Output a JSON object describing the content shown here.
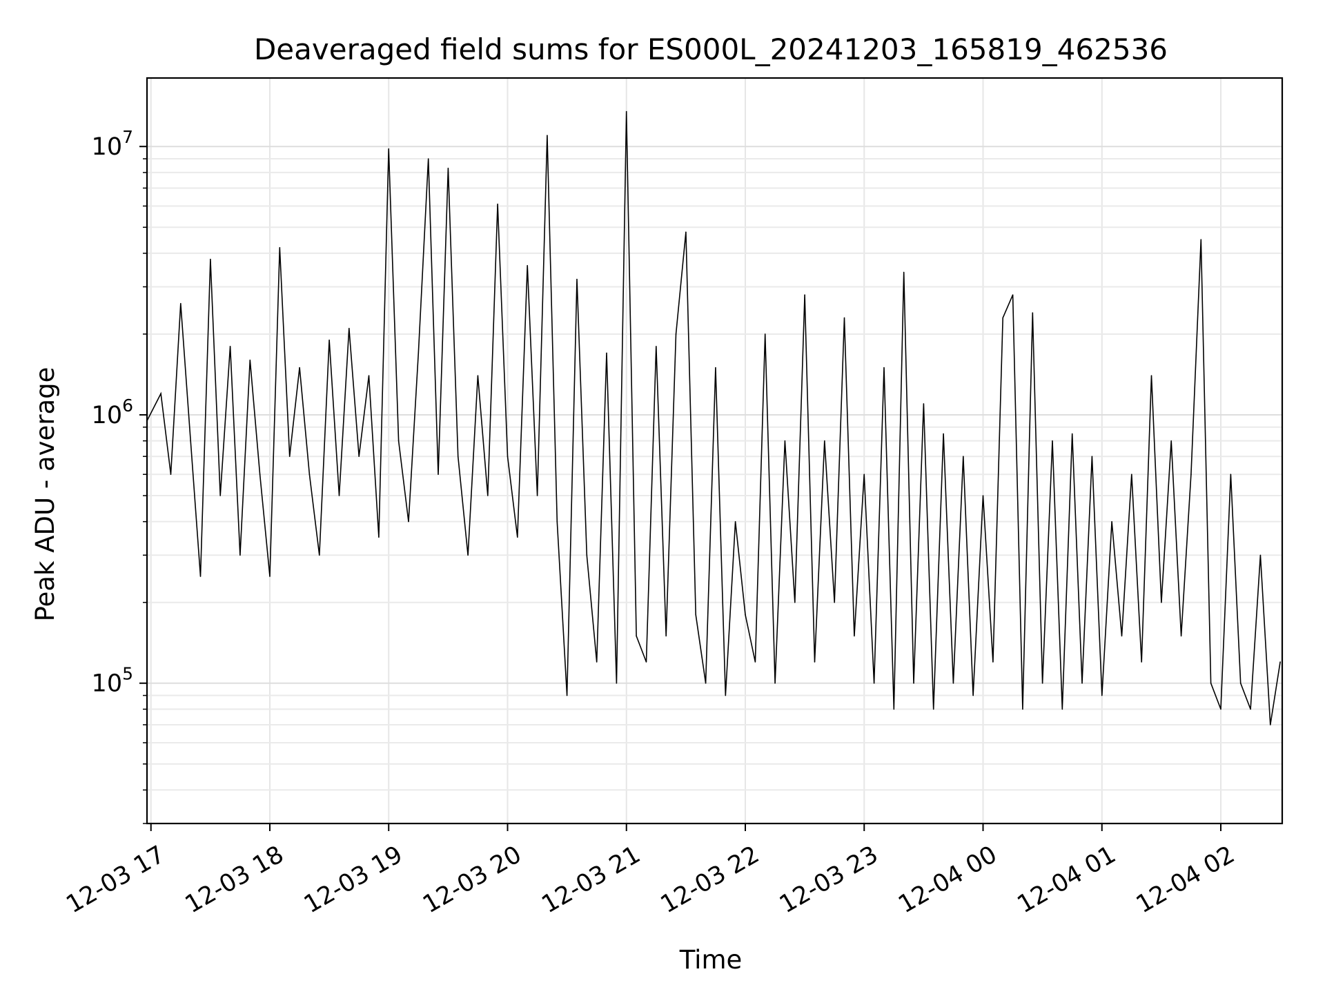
{
  "chart_data": {
    "type": "line",
    "title": "Deaveraged field sums for ES000L_20241203_165819_462536",
    "xlabel": "Time",
    "ylabel": "Peak ADU - average",
    "yscale": "log",
    "ylim": [
      30000,
      18000000
    ],
    "xlim": [
      "2024-12-03 16:58",
      "2024-12-04 02:31"
    ],
    "grid": true,
    "x_ticks": [
      {
        "label": "12-03 17",
        "t": "2024-12-03 17:00"
      },
      {
        "label": "12-03 18",
        "t": "2024-12-03 18:00"
      },
      {
        "label": "12-03 19",
        "t": "2024-12-03 19:00"
      },
      {
        "label": "12-03 20",
        "t": "2024-12-03 20:00"
      },
      {
        "label": "12-03 21",
        "t": "2024-12-03 21:00"
      },
      {
        "label": "12-03 22",
        "t": "2024-12-03 22:00"
      },
      {
        "label": "12-03 23",
        "t": "2024-12-03 23:00"
      },
      {
        "label": "12-04 00",
        "t": "2024-12-04 00:00"
      },
      {
        "label": "12-04 01",
        "t": "2024-12-04 01:00"
      },
      {
        "label": "12-04 02",
        "t": "2024-12-04 02:00"
      }
    ],
    "y_ticks": [
      {
        "base": "10",
        "exp": "5",
        "value": 100000
      },
      {
        "base": "10",
        "exp": "6",
        "value": 1000000
      },
      {
        "base": "10",
        "exp": "7",
        "value": 10000000
      }
    ],
    "series": [
      {
        "color": "#000000",
        "x": [
          "2024-12-03 16:58",
          "2024-12-03 17:05",
          "2024-12-03 17:10",
          "2024-12-03 17:15",
          "2024-12-03 17:20",
          "2024-12-03 17:25",
          "2024-12-03 17:30",
          "2024-12-03 17:35",
          "2024-12-03 17:40",
          "2024-12-03 17:45",
          "2024-12-03 17:50",
          "2024-12-03 17:55",
          "2024-12-03 18:00",
          "2024-12-03 18:05",
          "2024-12-03 18:10",
          "2024-12-03 18:15",
          "2024-12-03 18:20",
          "2024-12-03 18:25",
          "2024-12-03 18:30",
          "2024-12-03 18:35",
          "2024-12-03 18:40",
          "2024-12-03 18:45",
          "2024-12-03 18:50",
          "2024-12-03 18:55",
          "2024-12-03 19:00",
          "2024-12-03 19:05",
          "2024-12-03 19:10",
          "2024-12-03 19:15",
          "2024-12-03 19:20",
          "2024-12-03 19:25",
          "2024-12-03 19:30",
          "2024-12-03 19:35",
          "2024-12-03 19:40",
          "2024-12-03 19:45",
          "2024-12-03 19:50",
          "2024-12-03 19:55",
          "2024-12-03 20:00",
          "2024-12-03 20:05",
          "2024-12-03 20:10",
          "2024-12-03 20:15",
          "2024-12-03 20:20",
          "2024-12-03 20:25",
          "2024-12-03 20:30",
          "2024-12-03 20:35",
          "2024-12-03 20:40",
          "2024-12-03 20:45",
          "2024-12-03 20:50",
          "2024-12-03 20:55",
          "2024-12-03 21:00",
          "2024-12-03 21:05",
          "2024-12-03 21:10",
          "2024-12-03 21:15",
          "2024-12-03 21:20",
          "2024-12-03 21:25",
          "2024-12-03 21:30",
          "2024-12-03 21:35",
          "2024-12-03 21:40",
          "2024-12-03 21:45",
          "2024-12-03 21:50",
          "2024-12-03 21:55",
          "2024-12-03 22:00",
          "2024-12-03 22:05",
          "2024-12-03 22:10",
          "2024-12-03 22:15",
          "2024-12-03 22:20",
          "2024-12-03 22:25",
          "2024-12-03 22:30",
          "2024-12-03 22:35",
          "2024-12-03 22:40",
          "2024-12-03 22:45",
          "2024-12-03 22:50",
          "2024-12-03 22:55",
          "2024-12-03 23:00",
          "2024-12-03 23:05",
          "2024-12-03 23:10",
          "2024-12-03 23:15",
          "2024-12-03 23:20",
          "2024-12-03 23:25",
          "2024-12-03 23:30",
          "2024-12-03 23:35",
          "2024-12-03 23:40",
          "2024-12-03 23:45",
          "2024-12-03 23:50",
          "2024-12-03 23:55",
          "2024-12-04 00:00",
          "2024-12-04 00:05",
          "2024-12-04 00:10",
          "2024-12-04 00:15",
          "2024-12-04 00:20",
          "2024-12-04 00:25",
          "2024-12-04 00:30",
          "2024-12-04 00:35",
          "2024-12-04 00:40",
          "2024-12-04 00:45",
          "2024-12-04 00:50",
          "2024-12-04 00:55",
          "2024-12-04 01:00",
          "2024-12-04 01:05",
          "2024-12-04 01:10",
          "2024-12-04 01:15",
          "2024-12-04 01:20",
          "2024-12-04 01:25",
          "2024-12-04 01:30",
          "2024-12-04 01:35",
          "2024-12-04 01:40",
          "2024-12-04 01:45",
          "2024-12-04 01:50",
          "2024-12-04 01:55",
          "2024-12-04 02:00",
          "2024-12-04 02:05",
          "2024-12-04 02:10",
          "2024-12-04 02:15",
          "2024-12-04 02:20",
          "2024-12-04 02:25",
          "2024-12-04 02:30"
        ],
        "y": [
          950000,
          1200000,
          600000,
          2600000,
          800000,
          250000,
          3800000,
          500000,
          1800000,
          300000,
          1600000,
          600000,
          250000,
          4200000,
          700000,
          1500000,
          600000,
          300000,
          1900000,
          500000,
          2100000,
          700000,
          1400000,
          350000,
          9800000,
          800000,
          400000,
          1700000,
          9000000,
          600000,
          8300000,
          700000,
          300000,
          1400000,
          500000,
          6100000,
          700000,
          350000,
          3600000,
          500000,
          11000000,
          400000,
          90000,
          3200000,
          300000,
          120000,
          1700000,
          100000,
          13500000,
          150000,
          120000,
          1800000,
          150000,
          2000000,
          4800000,
          180000,
          100000,
          1500000,
          90000,
          400000,
          180000,
          120000,
          2000000,
          100000,
          800000,
          200000,
          2800000,
          120000,
          800000,
          200000,
          2300000,
          150000,
          600000,
          100000,
          1500000,
          80000,
          3400000,
          100000,
          1100000,
          80000,
          850000,
          100000,
          700000,
          90000,
          500000,
          120000,
          2300000,
          2800000,
          80000,
          2400000,
          100000,
          800000,
          80000,
          850000,
          100000,
          700000,
          90000,
          400000,
          150000,
          600000,
          120000,
          1400000,
          200000,
          800000,
          150000,
          600000,
          4500000,
          100000,
          80000,
          600000,
          100000,
          80000,
          300000,
          70000,
          120000
        ]
      }
    ]
  }
}
